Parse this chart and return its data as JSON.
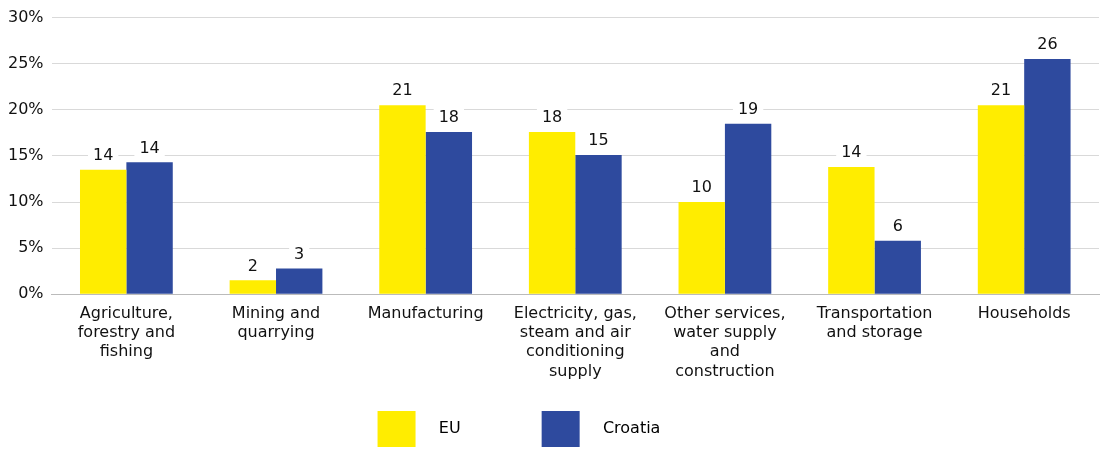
{
  "chart_data": {
    "type": "bar",
    "categories": [
      "Agriculture, forestry and fishing",
      "Mining and quarrying",
      "Manufacturing",
      "Electricity, gas, steam and air conditioning supply",
      "Other services, water supply and construction",
      "Transportation and storage",
      "Households"
    ],
    "series": [
      {
        "name": "EU",
        "color": "#ffed00",
        "values": [
          13.5,
          1.5,
          20.5,
          17.6,
          10.0,
          13.8,
          20.5
        ],
        "value_labels": [
          "14",
          "2",
          "21",
          "18",
          "10",
          "14",
          "21"
        ]
      },
      {
        "name": "Croatia",
        "color": "#2e4a9e",
        "values": [
          14.3,
          2.8,
          17.6,
          15.1,
          18.5,
          5.8,
          25.5
        ],
        "value_labels": [
          "14",
          "3",
          "18",
          "15",
          "19",
          "6",
          "26"
        ]
      }
    ],
    "ylim": [
      0,
      30
    ],
    "yticks": [
      {
        "value": 0,
        "label": "0%"
      },
      {
        "value": 5,
        "label": "5%"
      },
      {
        "value": 10,
        "label": "10%"
      },
      {
        "value": 15,
        "label": "15%"
      },
      {
        "value": 20,
        "label": "20%"
      },
      {
        "value": 25,
        "label": "25%"
      },
      {
        "value": 30,
        "label": "30%"
      }
    ],
    "grid": "y",
    "legend": "bottom"
  }
}
